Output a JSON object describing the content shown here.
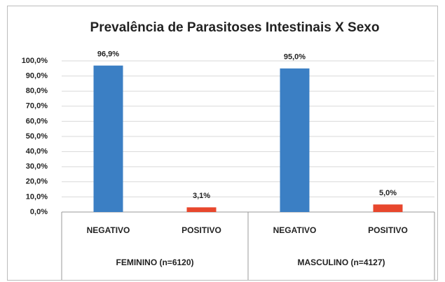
{
  "chart_data": {
    "type": "bar",
    "title": "Prevalência de Parasitoses Intestinais X Sexo",
    "categories": [
      "NEGATIVO",
      "POSITIVO",
      "NEGATIVO",
      "POSITIVO"
    ],
    "groups": [
      "FEMININO (n=6120)",
      "MASCULINO (n=4127)"
    ],
    "values": [
      96.9,
      3.1,
      95.0,
      5.0
    ],
    "value_labels": [
      "96,9%",
      "3,1%",
      "95,0%",
      "5,0%"
    ],
    "colors": [
      "#3b7fc4",
      "#e8472d",
      "#3b7fc4",
      "#e8472d"
    ],
    "ylim": [
      0,
      100
    ],
    "yticks": [
      {
        "value": 0,
        "label": "0,0%"
      },
      {
        "value": 10,
        "label": "10,0%"
      },
      {
        "value": 20,
        "label": "20,0%"
      },
      {
        "value": 30,
        "label": "30,0%"
      },
      {
        "value": 40,
        "label": "40,0%"
      },
      {
        "value": 50,
        "label": "50,0%"
      },
      {
        "value": 60,
        "label": "60,0%"
      },
      {
        "value": 70,
        "label": "70,0%"
      },
      {
        "value": 80,
        "label": "80,0%"
      },
      {
        "value": 90,
        "label": "90,0%"
      },
      {
        "value": 100,
        "label": "100,0%"
      }
    ],
    "grid": true
  }
}
